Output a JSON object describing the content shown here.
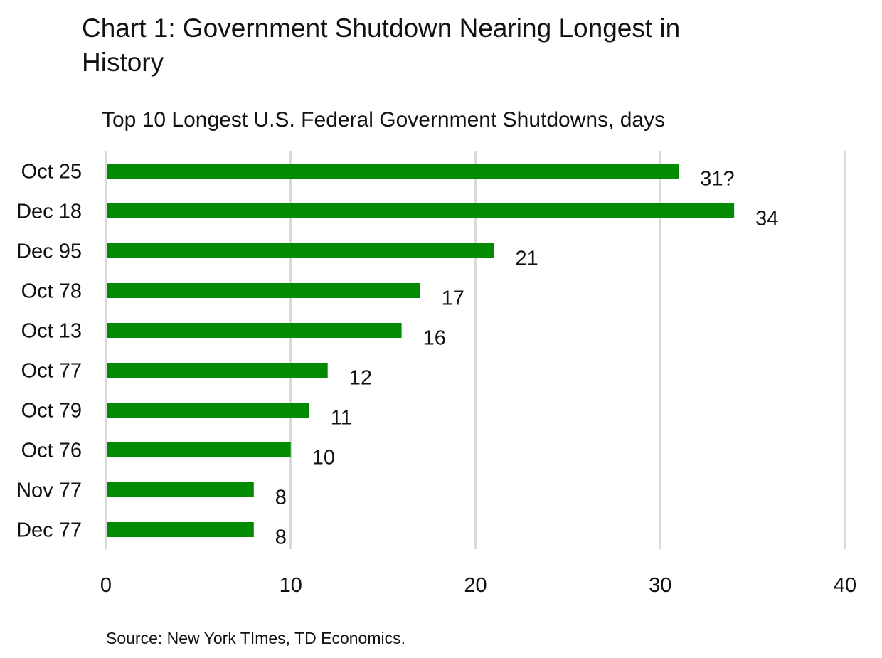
{
  "chart_data": {
    "type": "bar",
    "orientation": "horizontal",
    "title": "Chart 1: Government Shutdown Nearing Longest in History",
    "subtitle": "Top 10 Longest U.S. Federal Government Shutdowns, days",
    "categories": [
      "Oct 25",
      "Dec 18",
      "Dec 95",
      "Oct 78",
      "Oct 13",
      "Oct 77",
      "Oct 79",
      "Oct 76",
      "Nov 77",
      "Dec 77"
    ],
    "values": [
      31,
      34,
      21,
      17,
      16,
      12,
      11,
      10,
      8,
      8
    ],
    "data_labels": [
      "31?",
      "34",
      "21",
      "17",
      "16",
      "12",
      "11",
      "10",
      "8",
      "8"
    ],
    "xlim": [
      0,
      40
    ],
    "xticks": [
      0,
      10,
      20,
      30,
      40
    ],
    "xlabel": "",
    "ylabel": "",
    "grid": "vertical",
    "bar_color": "#038a03",
    "grid_color": "#d9d9d9",
    "source": "Source: New York TImes, TD Economics."
  }
}
